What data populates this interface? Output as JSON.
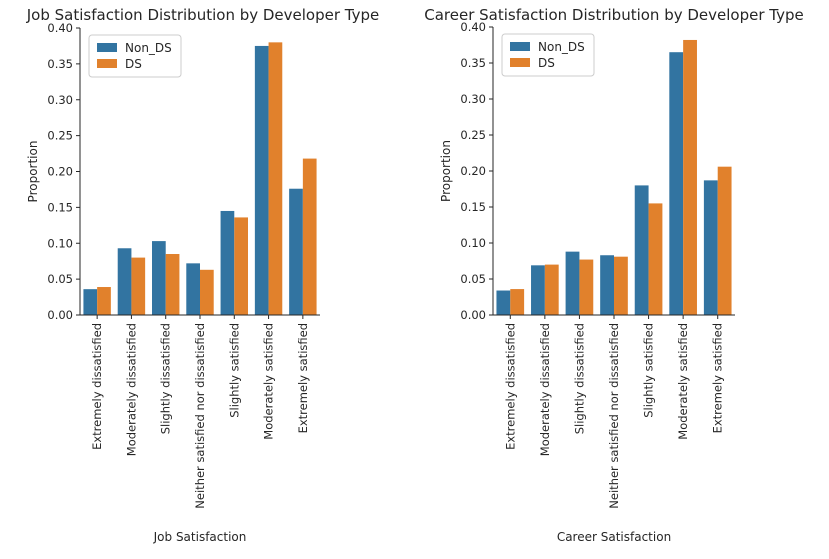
{
  "series_colors": [
    "#3274a1",
    "#e1812c"
  ],
  "chart_data": [
    {
      "type": "bar",
      "title": "Job Satisfaction Distribution by Developer Type",
      "xlabel": "Job Satisfaction",
      "ylabel": "Proportion",
      "ylim": [
        0,
        0.4
      ],
      "yticks": [
        "0.00",
        "0.05",
        "0.10",
        "0.15",
        "0.20",
        "0.25",
        "0.30",
        "0.35",
        "0.40"
      ],
      "legend_position": "top-left",
      "categories": [
        "Extremely dissatisfied",
        "Moderately dissatisfied",
        "Slightly dissatisfied",
        "Neither satisfied nor dissatisfied",
        "Slightly satisfied",
        "Moderately satisfied",
        "Extremely satisfied"
      ],
      "series": [
        {
          "name": "Non_DS",
          "values": [
            0.036,
            0.093,
            0.103,
            0.072,
            0.145,
            0.375,
            0.176
          ]
        },
        {
          "name": "DS",
          "values": [
            0.039,
            0.08,
            0.085,
            0.063,
            0.136,
            0.38,
            0.218
          ]
        }
      ]
    },
    {
      "type": "bar",
      "title": "Career Satisfaction Distribution by Developer Type",
      "xlabel": "Career Satisfaction",
      "ylabel": "Proportion",
      "ylim": [
        0,
        0.4
      ],
      "yticks": [
        "0.00",
        "0.05",
        "0.10",
        "0.15",
        "0.20",
        "0.25",
        "0.30",
        "0.35",
        "0.40"
      ],
      "legend_position": "top-left",
      "categories": [
        "Extremely dissatisfied",
        "Moderately dissatisfied",
        "Slightly dissatisfied",
        "Neither satisfied nor dissatisfied",
        "Slightly satisfied",
        "Moderately satisfied",
        "Extremely satisfied"
      ],
      "series": [
        {
          "name": "Non_DS",
          "values": [
            0.034,
            0.069,
            0.088,
            0.083,
            0.18,
            0.365,
            0.187
          ]
        },
        {
          "name": "DS",
          "values": [
            0.036,
            0.07,
            0.077,
            0.081,
            0.155,
            0.382,
            0.206
          ]
        }
      ]
    }
  ]
}
